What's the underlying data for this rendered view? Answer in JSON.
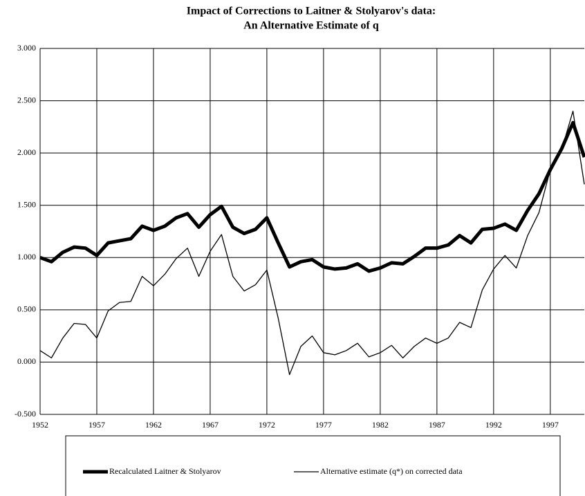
{
  "chart_data": {
    "type": "line",
    "title": [
      "Impact of Corrections to Laitner & Stolyarov's data:",
      "An Alternative Estimate of q"
    ],
    "x": [
      1952,
      1953,
      1954,
      1955,
      1956,
      1957,
      1958,
      1959,
      1960,
      1961,
      1962,
      1963,
      1964,
      1965,
      1966,
      1967,
      1968,
      1969,
      1970,
      1971,
      1972,
      1973,
      1974,
      1975,
      1976,
      1977,
      1978,
      1979,
      1980,
      1981,
      1982,
      1983,
      1984,
      1985,
      1986,
      1987,
      1988,
      1989,
      1990,
      1991,
      1992,
      1993,
      1994,
      1995,
      1996,
      1997,
      1998,
      1999,
      2000
    ],
    "series": [
      {
        "name": "Recalculated Laitner & Stolyarov",
        "color": "#000000",
        "width": 5,
        "values": [
          1.0,
          0.96,
          1.05,
          1.1,
          1.09,
          1.02,
          1.14,
          1.16,
          1.18,
          1.3,
          1.26,
          1.3,
          1.38,
          1.42,
          1.29,
          1.41,
          1.49,
          1.29,
          1.23,
          1.27,
          1.38,
          1.14,
          0.91,
          0.96,
          0.98,
          0.91,
          0.89,
          0.9,
          0.94,
          0.87,
          0.9,
          0.95,
          0.94,
          1.01,
          1.09,
          1.09,
          1.12,
          1.21,
          1.14,
          1.27,
          1.28,
          1.32,
          1.26,
          1.45,
          1.61,
          1.84,
          2.04,
          2.29,
          1.96
        ]
      },
      {
        "name": "Alternative estimate (q*) on corrected data",
        "color": "#000000",
        "width": 1.3,
        "values": [
          0.11,
          0.04,
          0.23,
          0.37,
          0.36,
          0.23,
          0.49,
          0.57,
          0.58,
          0.82,
          0.73,
          0.84,
          0.99,
          1.09,
          0.82,
          1.06,
          1.22,
          0.82,
          0.68,
          0.74,
          0.88,
          0.42,
          -0.12,
          0.15,
          0.25,
          0.09,
          0.07,
          0.11,
          0.18,
          0.05,
          0.09,
          0.16,
          0.04,
          0.15,
          0.23,
          0.18,
          0.23,
          0.38,
          0.33,
          0.69,
          0.89,
          1.02,
          0.9,
          1.21,
          1.43,
          1.84,
          2.03,
          2.4,
          1.7
        ]
      }
    ],
    "xlim": [
      1952,
      2000
    ],
    "xticks": [
      1952,
      1957,
      1962,
      1967,
      1972,
      1977,
      1982,
      1987,
      1992,
      1997
    ],
    "ylim": [
      -0.5,
      3
    ],
    "yticks": [
      {
        "value": -0.5,
        "label": "-0.500"
      },
      {
        "value": 0,
        "label": "0.000"
      },
      {
        "value": 0.5,
        "label": "0.500"
      },
      {
        "value": 1,
        "label": "1.000"
      },
      {
        "value": 1.5,
        "label": "1.500"
      },
      {
        "value": 2,
        "label": "2.000"
      },
      {
        "value": 2.5,
        "label": "2.500"
      },
      {
        "value": 3,
        "label": "3.000"
      }
    ],
    "grid": true,
    "legend": "bottom"
  }
}
